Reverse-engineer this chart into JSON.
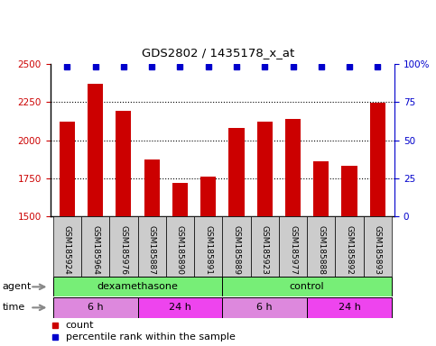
{
  "title": "GDS2802 / 1435178_x_at",
  "samples": [
    "GSM185924",
    "GSM185964",
    "GSM185976",
    "GSM185887",
    "GSM185890",
    "GSM185891",
    "GSM185889",
    "GSM185923",
    "GSM185977",
    "GSM185888",
    "GSM185892",
    "GSM185893"
  ],
  "bar_values": [
    2120,
    2370,
    2195,
    1870,
    1720,
    1760,
    2080,
    2120,
    2140,
    1860,
    1830,
    2245
  ],
  "percentile_values": [
    98,
    98,
    98,
    98,
    98,
    98,
    98,
    98,
    98,
    98,
    98,
    98
  ],
  "bar_color": "#cc0000",
  "percentile_color": "#0000cc",
  "ylim_left": [
    1500,
    2500
  ],
  "ylim_right": [
    0,
    100
  ],
  "yticks_left": [
    1500,
    1750,
    2000,
    2250,
    2500
  ],
  "yticks_right": [
    0,
    25,
    50,
    75,
    100
  ],
  "ytick_right_labels": [
    "0",
    "25",
    "50",
    "75",
    "100%"
  ],
  "agent_groups": [
    {
      "label": "dexamethasone",
      "start": 0,
      "end": 6,
      "color": "#77ee77"
    },
    {
      "label": "control",
      "start": 6,
      "end": 12,
      "color": "#77ee77"
    }
  ],
  "time_groups": [
    {
      "label": "6 h",
      "start": 0,
      "end": 3,
      "color": "#dd88dd"
    },
    {
      "label": "24 h",
      "start": 3,
      "end": 6,
      "color": "#ee44ee"
    },
    {
      "label": "6 h",
      "start": 6,
      "end": 9,
      "color": "#dd88dd"
    },
    {
      "label": "24 h",
      "start": 9,
      "end": 12,
      "color": "#ee44ee"
    }
  ],
  "legend_count_color": "#cc0000",
  "legend_percentile_color": "#0000cc",
  "tick_label_color_left": "#cc0000",
  "tick_label_color_right": "#0000cc",
  "bg_color": "#ffffff",
  "xticklabel_bg": "#cccccc",
  "grid_lines": [
    1750,
    2000,
    2250
  ]
}
